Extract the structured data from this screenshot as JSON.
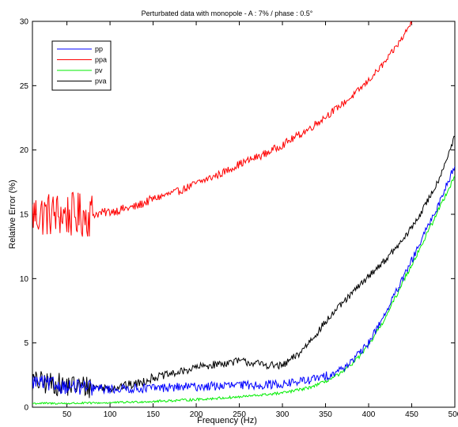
{
  "chart_data": {
    "type": "line",
    "title": "Perturbated data with monopole - A : 7% / phase : 0.5°",
    "xlabel": "Frequency (Hz)",
    "ylabel": "Relative Error (%)",
    "xlim": [
      10,
      500
    ],
    "ylim": [
      0,
      30
    ],
    "xticks": [
      50,
      100,
      150,
      200,
      250,
      300,
      350,
      400,
      450,
      500
    ],
    "yticks": [
      0,
      5,
      10,
      15,
      20,
      25,
      30
    ],
    "grid": false,
    "legend_position": "top-left",
    "series": [
      {
        "name": "pp",
        "color": "#0000ff",
        "noise": [
          0.6,
          0.35,
          0.35,
          0.35,
          0.35,
          0.3,
          0.3
        ],
        "x": [
          10,
          50,
          100,
          150,
          200,
          250,
          300,
          330,
          350,
          370,
          390,
          400,
          420,
          440,
          460,
          480,
          500
        ],
        "y": [
          2.0,
          1.6,
          1.4,
          1.5,
          1.6,
          1.7,
          1.8,
          2.1,
          2.4,
          3.0,
          4.2,
          5.0,
          7.4,
          10.0,
          12.8,
          15.6,
          18.8
        ]
      },
      {
        "name": "ppa",
        "color": "#ff0000",
        "noise": [
          1.8,
          0.35,
          0.3,
          0.3,
          0.3,
          0.25,
          0.25
        ],
        "x": [
          10,
          40,
          60,
          80,
          100,
          130,
          150,
          180,
          200,
          230,
          250,
          280,
          300,
          330,
          350,
          380,
          400,
          420,
          440,
          450
        ],
        "y": [
          15.0,
          15.0,
          14.9,
          15.0,
          15.2,
          15.6,
          16.2,
          16.8,
          17.4,
          18.2,
          18.9,
          19.7,
          20.4,
          21.6,
          22.6,
          24.1,
          25.4,
          26.9,
          28.8,
          30.0
        ]
      },
      {
        "name": "pv",
        "color": "#00ee00",
        "noise": [
          0.08,
          0.08,
          0.1,
          0.1,
          0.12,
          0.15,
          0.2
        ],
        "x": [
          10,
          50,
          100,
          150,
          200,
          250,
          300,
          330,
          350,
          370,
          390,
          400,
          420,
          440,
          460,
          480,
          500
        ],
        "y": [
          0.3,
          0.3,
          0.35,
          0.45,
          0.6,
          0.8,
          1.1,
          1.5,
          2.0,
          2.7,
          4.0,
          4.8,
          7.0,
          9.8,
          12.4,
          15.2,
          18.0
        ]
      },
      {
        "name": "pva",
        "color": "#000000",
        "noise": [
          0.9,
          0.35,
          0.3,
          0.3,
          0.3,
          0.25,
          0.25
        ],
        "x": [
          10,
          50,
          100,
          130,
          150,
          180,
          200,
          230,
          250,
          280,
          300,
          320,
          340,
          360,
          380,
          400,
          420,
          440,
          460,
          480,
          500
        ],
        "y": [
          2.0,
          1.7,
          1.5,
          1.8,
          2.3,
          2.7,
          3.1,
          3.4,
          3.6,
          3.3,
          3.2,
          4.2,
          5.8,
          7.4,
          8.8,
          10.2,
          11.5,
          13.0,
          15.0,
          17.5,
          21.0
        ]
      }
    ]
  }
}
